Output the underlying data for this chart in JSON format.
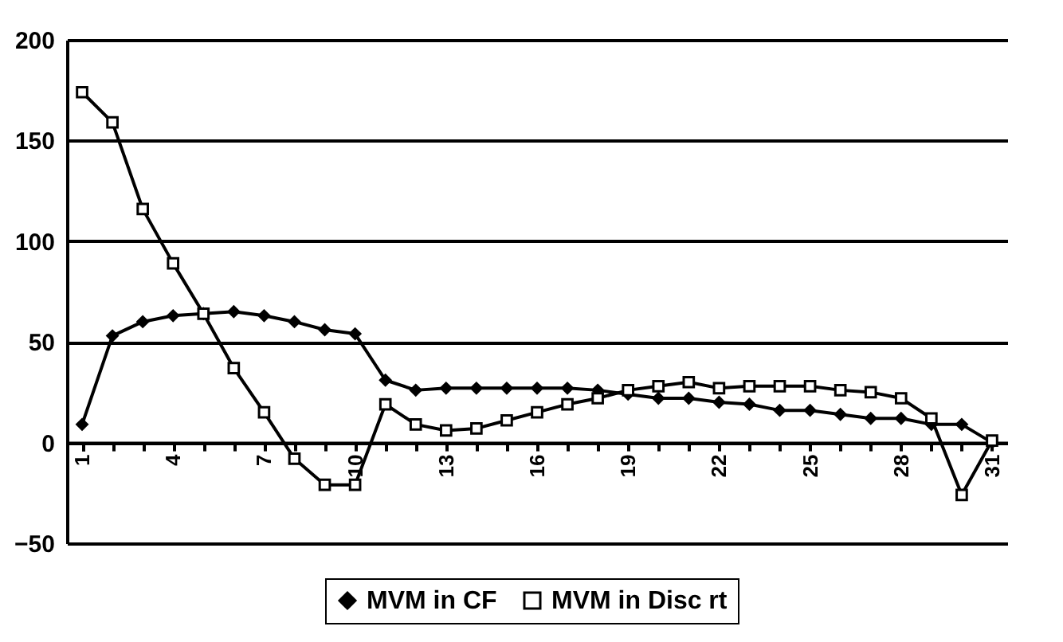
{
  "chart_data": {
    "type": "line",
    "categories": [
      "1",
      null,
      null,
      "4",
      null,
      null,
      "7",
      null,
      null,
      "10",
      null,
      null,
      "13",
      null,
      null,
      "16",
      null,
      null,
      "19",
      null,
      null,
      "22",
      null,
      null,
      "25",
      null,
      null,
      "28",
      null,
      null,
      "31"
    ],
    "series": [
      {
        "name": "MVM in CF",
        "color": "#000000",
        "marker": "diamond",
        "values": [
          9,
          53,
          60,
          63,
          64,
          65,
          63,
          60,
          56,
          54,
          31,
          26,
          27,
          27,
          27,
          27,
          27,
          26,
          24,
          22,
          22,
          20,
          19,
          16,
          16,
          14,
          12,
          12,
          9,
          9,
          0
        ]
      },
      {
        "name": "MVM in Disc rt",
        "color": "#000000",
        "marker": "square",
        "values": [
          174,
          159,
          116,
          89,
          64,
          37,
          15,
          -8,
          -21,
          -21,
          19,
          9,
          6,
          7,
          11,
          15,
          19,
          22,
          26,
          28,
          30,
          27,
          28,
          28,
          28,
          26,
          25,
          22,
          12,
          -26,
          1
        ]
      }
    ],
    "ylim": [
      -50,
      200
    ],
    "yticks": [
      -50,
      0,
      50,
      100,
      150,
      200
    ],
    "grid": "y",
    "legend": "bottom",
    "line_style": "solid"
  }
}
